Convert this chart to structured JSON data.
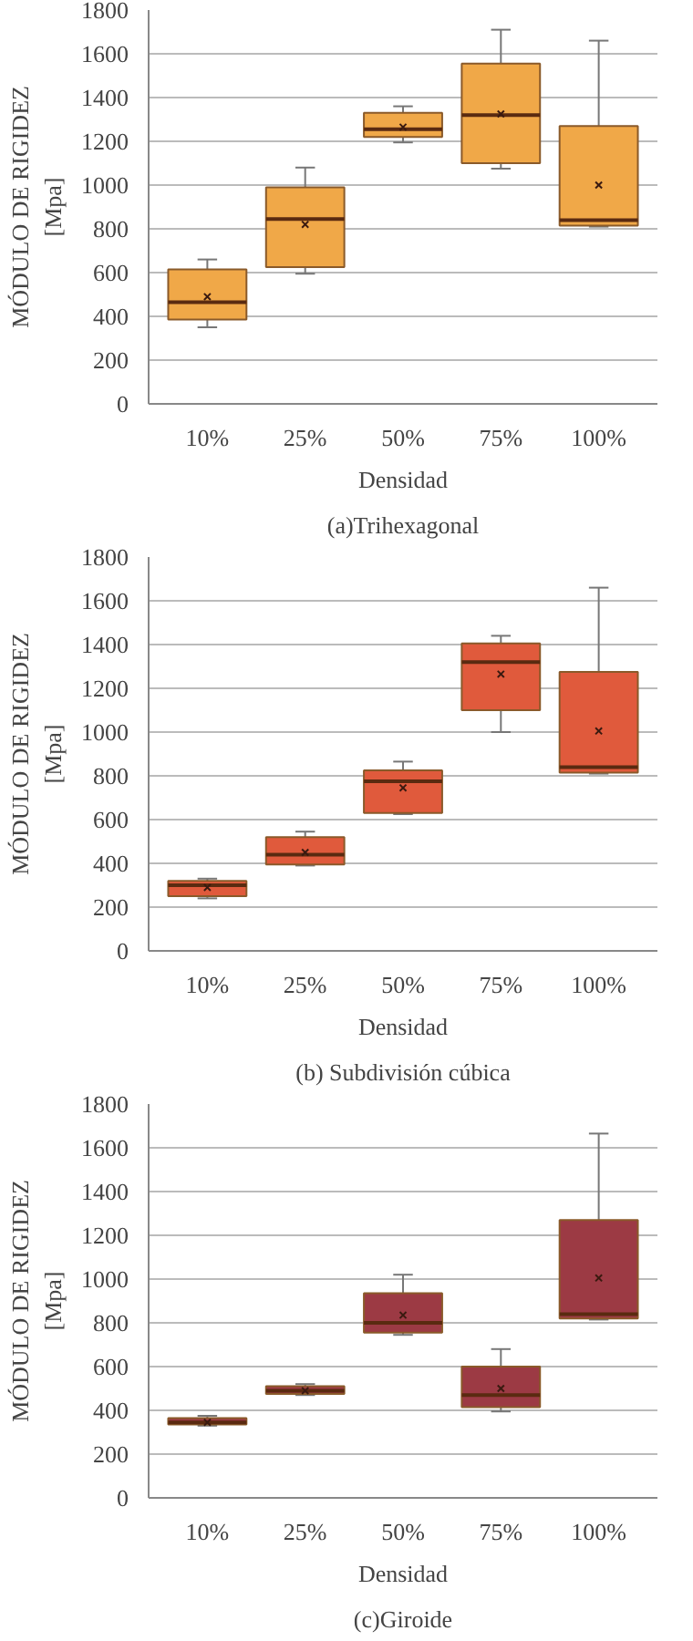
{
  "chart_data": [
    {
      "type": "box",
      "title": "(a)Trihexagonal",
      "xlabel": "Densidad",
      "ylabel": "MÓDULO DE RIGIDEZ\n[Mpa]",
      "categories": [
        "10%",
        "25%",
        "50%",
        "75%",
        "100%"
      ],
      "ylim": [
        0,
        1800
      ],
      "yticks": [
        0,
        200,
        400,
        600,
        800,
        1000,
        1200,
        1400,
        1600,
        1800
      ],
      "grid": "y",
      "series": [
        {
          "color": "#f0a848",
          "boxes": [
            {
              "low": 350,
              "q1": 385,
              "median": 465,
              "q3": 615,
              "high": 660,
              "mean": 490
            },
            {
              "low": 595,
              "q1": 625,
              "median": 845,
              "q3": 990,
              "high": 1080,
              "mean": 820
            },
            {
              "low": 1195,
              "q1": 1220,
              "median": 1255,
              "q3": 1330,
              "high": 1360,
              "mean": 1265
            },
            {
              "low": 1075,
              "q1": 1100,
              "median": 1320,
              "q3": 1555,
              "high": 1710,
              "mean": 1325
            },
            {
              "low": 810,
              "q1": 815,
              "median": 840,
              "q3": 1270,
              "high": 1660,
              "mean": 1000
            }
          ]
        }
      ]
    },
    {
      "type": "box",
      "title": "(b) Subdivisión cúbica",
      "xlabel": "Densidad",
      "ylabel": "MÓDULO DE RIGIDEZ\n[Mpa]",
      "categories": [
        "10%",
        "25%",
        "50%",
        "75%",
        "100%"
      ],
      "ylim": [
        0,
        1800
      ],
      "yticks": [
        0,
        200,
        400,
        600,
        800,
        1000,
        1200,
        1400,
        1600,
        1800
      ],
      "grid": "y",
      "series": [
        {
          "color": "#e05a3c",
          "boxes": [
            {
              "low": 240,
              "q1": 250,
              "median": 300,
              "q3": 320,
              "high": 330,
              "mean": 290
            },
            {
              "low": 390,
              "q1": 395,
              "median": 440,
              "q3": 520,
              "high": 545,
              "mean": 450
            },
            {
              "low": 625,
              "q1": 630,
              "median": 775,
              "q3": 825,
              "high": 865,
              "mean": 745
            },
            {
              "low": 1000,
              "q1": 1100,
              "median": 1320,
              "q3": 1405,
              "high": 1440,
              "mean": 1265
            },
            {
              "low": 810,
              "q1": 815,
              "median": 840,
              "q3": 1275,
              "high": 1660,
              "mean": 1005
            }
          ]
        }
      ]
    },
    {
      "type": "box",
      "title": "(c)Giroide",
      "xlabel": "Densidad",
      "ylabel": "MÓDULO DE RIGIDEZ\n[Mpa]",
      "categories": [
        "10%",
        "25%",
        "50%",
        "75%",
        "100%"
      ],
      "ylim": [
        0,
        1800
      ],
      "yticks": [
        0,
        200,
        400,
        600,
        800,
        1000,
        1200,
        1400,
        1600,
        1800
      ],
      "grid": "y",
      "series": [
        {
          "color": "#9c3a44",
          "boxes": [
            {
              "low": 330,
              "q1": 335,
              "median": 345,
              "q3": 365,
              "high": 375,
              "mean": 345
            },
            {
              "low": 470,
              "q1": 475,
              "median": 490,
              "q3": 510,
              "high": 520,
              "mean": 490
            },
            {
              "low": 745,
              "q1": 755,
              "median": 800,
              "q3": 935,
              "high": 1020,
              "mean": 835
            },
            {
              "low": 395,
              "q1": 415,
              "median": 470,
              "q3": 600,
              "high": 680,
              "mean": 500
            },
            {
              "low": 815,
              "q1": 820,
              "median": 840,
              "q3": 1270,
              "high": 1665,
              "mean": 1005
            }
          ]
        }
      ]
    }
  ]
}
